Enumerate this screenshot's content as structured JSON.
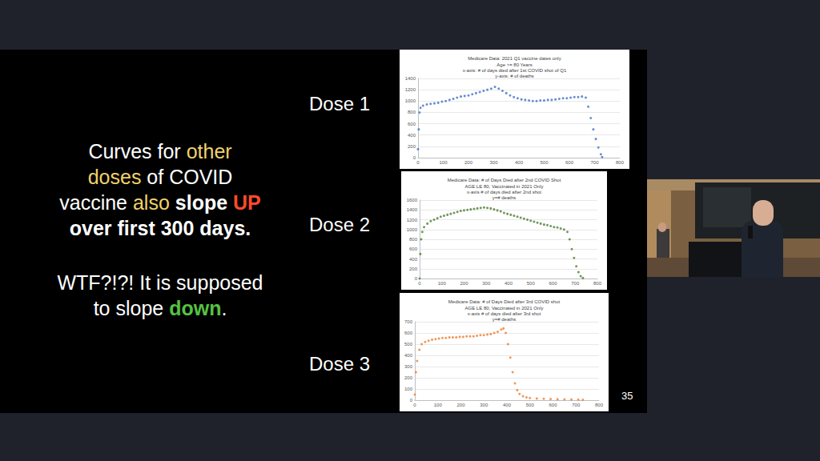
{
  "slide": {
    "text_blocks": [
      [
        [
          {
            "text": "Curves for "
          },
          {
            "text": "other",
            "color": "#f2d26a"
          }
        ],
        [
          {
            "text": "doses",
            "color": "#f2d26a"
          },
          {
            "text": " of COVID"
          }
        ],
        [
          {
            "text": "vaccine "
          },
          {
            "text": "also",
            "color": "#f2d26a"
          },
          {
            "text": " "
          },
          {
            "text": "slope ",
            "bold": true
          },
          {
            "text": "UP",
            "color": "#ff4a2a",
            "bold": true
          }
        ],
        [
          {
            "text": "over first 300 days.",
            "bold": true
          }
        ]
      ],
      [
        [
          {
            "text": "WTF?!?! It is supposed"
          }
        ],
        [
          {
            "text": "to slope "
          },
          {
            "text": "down",
            "color": "#55c244",
            "bold": true
          },
          {
            "text": "."
          }
        ]
      ]
    ],
    "panel_labels": [
      "Dose 1",
      "Dose 2",
      "Dose 3"
    ],
    "page_number": 35
  },
  "chart_data": [
    {
      "type": "scatter",
      "title": "Medicare Data: 2021 Q1 vaccine dates only",
      "subtitle": "Age >= 80 Years\nx-axis: # of days died after 1st COVID shot of Q1\ny-axis: # of deaths",
      "x": [
        0,
        3,
        6,
        10,
        20,
        35,
        50,
        65,
        80,
        95,
        110,
        125,
        140,
        155,
        170,
        185,
        200,
        215,
        230,
        245,
        260,
        275,
        290,
        305,
        320,
        335,
        350,
        365,
        380,
        395,
        410,
        425,
        440,
        455,
        470,
        485,
        500,
        515,
        530,
        545,
        560,
        575,
        590,
        605,
        620,
        635,
        650,
        665,
        675,
        685,
        695,
        705,
        715,
        725,
        730
      ],
      "values": [
        150,
        500,
        800,
        880,
        920,
        940,
        950,
        960,
        970,
        990,
        1000,
        1020,
        1040,
        1060,
        1080,
        1090,
        1100,
        1120,
        1140,
        1160,
        1180,
        1200,
        1220,
        1250,
        1220,
        1180,
        1140,
        1100,
        1070,
        1050,
        1030,
        1020,
        1010,
        1000,
        1000,
        1010,
        1010,
        1020,
        1020,
        1030,
        1040,
        1050,
        1050,
        1060,
        1070,
        1070,
        1080,
        1060,
        900,
        700,
        500,
        330,
        180,
        60,
        10
      ],
      "color": "#4472c4",
      "marker": "circle",
      "xlim": [
        0,
        800
      ],
      "xticks": [
        0,
        100,
        200,
        300,
        400,
        500,
        600,
        700,
        800
      ],
      "ylim": [
        0,
        1400
      ],
      "yticks": [
        0,
        200,
        400,
        600,
        800,
        1000,
        1200,
        1400
      ],
      "grid": true
    },
    {
      "type": "scatter",
      "title": "Medicare Data: # of Days Died after 2nd COVID Shot",
      "subtitle": "AGE LE 80, Vaccinated in 2021 Only\nx-axis # of days died after 2nd shot\ny=# deaths",
      "x": [
        0,
        3,
        7,
        12,
        20,
        35,
        50,
        65,
        80,
        95,
        110,
        125,
        140,
        155,
        170,
        185,
        200,
        215,
        230,
        245,
        260,
        275,
        290,
        305,
        320,
        335,
        350,
        365,
        380,
        395,
        410,
        425,
        440,
        455,
        470,
        485,
        500,
        515,
        530,
        545,
        560,
        575,
        590,
        605,
        620,
        635,
        650,
        665,
        675,
        685,
        695,
        705,
        715,
        725,
        735
      ],
      "values": [
        0,
        500,
        800,
        950,
        1050,
        1120,
        1170,
        1200,
        1230,
        1260,
        1280,
        1300,
        1320,
        1340,
        1360,
        1380,
        1390,
        1400,
        1410,
        1420,
        1430,
        1440,
        1450,
        1440,
        1430,
        1410,
        1390,
        1370,
        1340,
        1320,
        1300,
        1280,
        1260,
        1240,
        1220,
        1200,
        1180,
        1160,
        1140,
        1120,
        1100,
        1090,
        1070,
        1050,
        1040,
        1020,
        1000,
        950,
        800,
        600,
        420,
        250,
        130,
        50,
        10
      ],
      "color": "#4e7d32",
      "marker": "circle",
      "xlim": [
        0,
        800
      ],
      "xticks": [
        0,
        100,
        200,
        300,
        400,
        500,
        600,
        700,
        800
      ],
      "ylim": [
        0,
        1600
      ],
      "yticks": [
        0,
        200,
        400,
        600,
        800,
        1000,
        1200,
        1400,
        1600
      ],
      "grid": true
    },
    {
      "type": "scatter",
      "title": "Medicare Data: # of Days Died after 3rd COVID shot",
      "subtitle": "AGE LE 80, Vaccinated in 2021 Only\nx-axis # of days died after 3rd shot\ny=# deaths",
      "x": [
        0,
        5,
        10,
        20,
        30,
        45,
        60,
        75,
        90,
        105,
        120,
        135,
        150,
        165,
        180,
        195,
        210,
        225,
        240,
        255,
        270,
        285,
        300,
        315,
        330,
        345,
        360,
        375,
        385,
        395,
        405,
        415,
        425,
        435,
        445,
        455,
        470,
        485,
        500,
        530,
        560,
        590,
        620,
        650,
        680,
        710,
        730
      ],
      "values": [
        50,
        250,
        350,
        450,
        500,
        520,
        530,
        540,
        545,
        550,
        555,
        555,
        560,
        560,
        560,
        565,
        565,
        570,
        570,
        570,
        575,
        580,
        580,
        585,
        590,
        600,
        610,
        630,
        640,
        600,
        500,
        380,
        250,
        150,
        90,
        55,
        35,
        25,
        20,
        15,
        12,
        10,
        8,
        7,
        6,
        5,
        4
      ],
      "color": "#ed7d31",
      "marker": "circle",
      "xlim": [
        0,
        800
      ],
      "xticks": [
        0,
        100,
        200,
        300,
        400,
        500,
        600,
        700,
        800
      ],
      "ylim": [
        0,
        700
      ],
      "yticks": [
        0,
        100,
        200,
        300,
        400,
        500,
        600,
        700
      ],
      "grid": true
    }
  ]
}
